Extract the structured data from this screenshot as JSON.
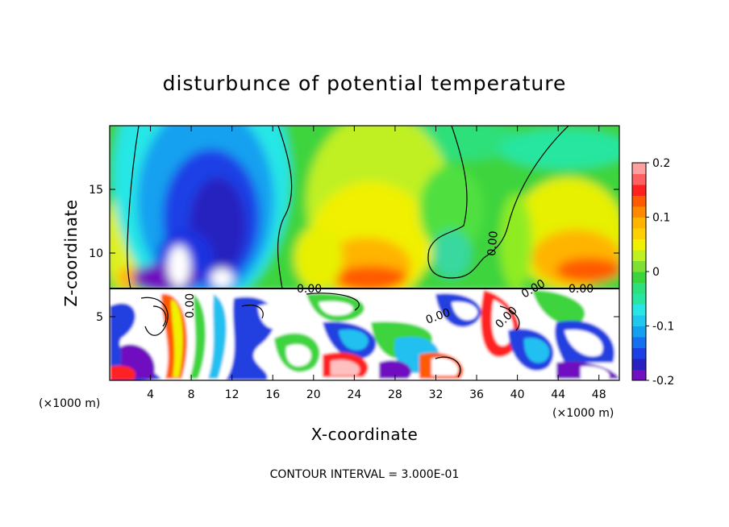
{
  "chart_data": {
    "type": "heatmap",
    "title": "disturbunce of potential temperature",
    "xlabel": "X-coordinate",
    "ylabel": "Z-coordinate",
    "x_unit_left": "(×1000 m)",
    "x_unit_right": "(×1000 m)",
    "xlim": [
      0,
      50
    ],
    "ylim": [
      0,
      20
    ],
    "x_ticks": [
      4,
      8,
      12,
      16,
      20,
      24,
      28,
      32,
      36,
      40,
      44,
      48
    ],
    "y_ticks": [
      5,
      10,
      15
    ],
    "colorbar": {
      "range": [
        -0.2,
        0.2
      ],
      "ticks": [
        {
          "value": 0.2,
          "label": "0.2"
        },
        {
          "value": 0.1,
          "label": "0.1"
        },
        {
          "value": 0,
          "label": "0"
        },
        {
          "value": -0.1,
          "label": "-0.1"
        },
        {
          "value": -0.2,
          "label": "-0.2"
        }
      ]
    },
    "contour_labels": [
      "0.00",
      "0.00",
      "0.00",
      "0.00",
      "0.00",
      "0.00",
      "0.00"
    ],
    "footer": "CONTOUR INTERVAL = 3.000E-01",
    "features": [
      {
        "name": "cold-anomaly",
        "x": 9.5,
        "z": 14,
        "value": -0.18
      },
      {
        "name": "warm-anomaly",
        "x": 24,
        "z": 10,
        "value": 0.11
      },
      {
        "name": "warm-anomaly-right",
        "x": 47,
        "z": 10,
        "value": 0.1
      },
      {
        "name": "weak-cold-anomaly",
        "x": 34,
        "z": 10,
        "value": 0.01
      },
      {
        "name": "turbulent-layer",
        "x": 25,
        "z": 3.5,
        "value": 0.0
      }
    ]
  }
}
